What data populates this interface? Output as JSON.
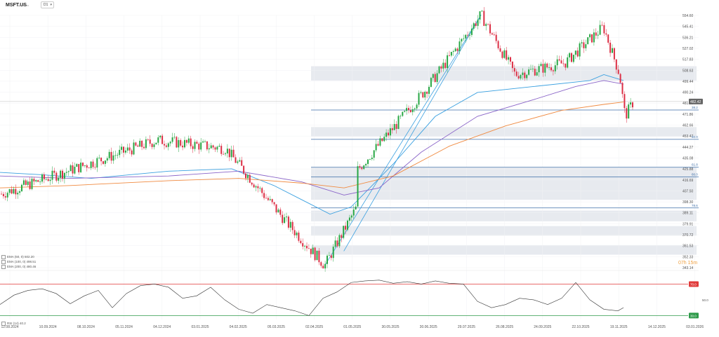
{
  "header": {
    "symbol": "MSFT.US",
    "symbol_sub": "Micro",
    "timeframe": "D1",
    "caret": "▾"
  },
  "indicators": {
    "ema1": "EMA (50, 0) 502.20",
    "ema2": "EMA (100, 0) 498.51",
    "ema3": "EMA (200, 0) 480.46",
    "rsi": "RSI (14) 40.2"
  },
  "timer": "07h 15m",
  "colors": {
    "bull": "#27a744",
    "bear": "#dc2f45",
    "ema50": "#3aa0e0",
    "ema100": "#8a64c8",
    "ema200": "#f08a40",
    "fib": "#3d6ea8",
    "zone": "#e7eaef",
    "rsi_hi": "#e03a3a",
    "rsi_lo": "#2e9a4a"
  },
  "chart_data": [
    {
      "type": "candlestick",
      "title": "",
      "x_tick_labels": [
        "12.08.2024",
        "10.09.2024",
        "08.10.2024",
        "05.11.2024",
        "04.12.2024",
        "03.01.2025",
        "04.02.2025",
        "05.03.2025",
        "02.04.2025",
        "01.05.2025",
        "30.05.2025",
        "30.06.2025",
        "29.07.2025",
        "26.08.2025",
        "24.09.2025",
        "22.10.2025",
        "19.11.2025",
        "14.12.2025",
        "03.01.2026"
      ],
      "y_tick_labels": [
        "554.60",
        "545.41",
        "536.21",
        "527.02",
        "517.83",
        "508.63",
        "499.44",
        "490.24",
        "481.05",
        "471.86",
        "462.66",
        "453.47",
        "444.27",
        "435.08",
        "425.88",
        "416.69",
        "407.50",
        "398.30",
        "389.11",
        "379.91",
        "370.72",
        "361.53",
        "352.33",
        "343.14"
      ],
      "ylim": [
        343.14,
        554.6
      ],
      "last_price": "482.42",
      "key_points": [
        {
          "date": "2024-08-12",
          "price": 405
        },
        {
          "date": "2024-12-05",
          "price": 450
        },
        {
          "date": "2025-01-24",
          "price": 443
        },
        {
          "date": "2025-03-10",
          "price": 381
        },
        {
          "date": "2025-04-07",
          "price": 345
        },
        {
          "date": "2025-04-30",
          "price": 393
        },
        {
          "date": "2025-05-01",
          "price": 425
        },
        {
          "date": "2025-06-20",
          "price": 492
        },
        {
          "date": "2025-07-31",
          "price": 555
        },
        {
          "date": "2025-08-25",
          "price": 505
        },
        {
          "date": "2025-10-01",
          "price": 515
        },
        {
          "date": "2025-10-29",
          "price": 545
        },
        {
          "date": "2025-11-10",
          "price": 505
        },
        {
          "date": "2025-11-14",
          "price": 470
        },
        {
          "date": "2025-11-20",
          "price": 482
        }
      ],
      "fib_levels": [
        {
          "label": "38.2",
          "price": 475.3
        },
        {
          "label": "50.0",
          "price": 450.7
        },
        {
          "label": "61.8",
          "price": 427.3
        },
        {
          "label": "66.0",
          "price": 419.2
        },
        {
          "label": "78.6",
          "price": 393.2
        }
      ],
      "zones": [
        {
          "from": 500,
          "to": 512
        },
        {
          "from": 453,
          "to": 461
        },
        {
          "from": 400,
          "to": 427
        },
        {
          "from": 382,
          "to": 391
        },
        {
          "from": 370,
          "to": 378
        },
        {
          "from": 354,
          "to": 362
        }
      ],
      "trendlines": [
        {
          "from": {
            "date": "2025-04-21",
            "price": 357
          },
          "to": {
            "date": "2025-07-31",
            "price": 555
          }
        },
        {
          "from": {
            "date": "2025-04-07",
            "price": 345
          },
          "to": {
            "date": "2025-07-31",
            "price": 555
          }
        }
      ],
      "ema_series": [
        {
          "name": "EMA 50",
          "points": [
            [
              0,
              423
            ],
            [
              60,
              421
            ],
            [
              130,
              418
            ],
            [
              240,
              424
            ],
            [
              330,
              426
            ],
            [
              390,
              412
            ],
            [
              430,
              400
            ],
            [
              470,
              388
            ],
            [
              500,
              394
            ],
            [
              560,
              430
            ],
            [
              620,
              470
            ],
            [
              680,
              490
            ],
            [
              760,
              495
            ],
            [
              840,
              500
            ],
            [
              860,
              505
            ],
            [
              888,
              500
            ]
          ]
        },
        {
          "name": "EMA 100",
          "points": [
            [
              0,
              420
            ],
            [
              100,
              418
            ],
            [
              240,
              420
            ],
            [
              340,
              424
            ],
            [
              430,
              415
            ],
            [
              490,
              404
            ],
            [
              540,
              410
            ],
            [
              600,
              440
            ],
            [
              680,
              470
            ],
            [
              760,
              484
            ],
            [
              820,
              495
            ],
            [
              860,
              500
            ],
            [
              888,
              497
            ]
          ]
        },
        {
          "name": "EMA 200",
          "points": [
            [
              0,
              410
            ],
            [
              100,
              412
            ],
            [
              240,
              416
            ],
            [
              340,
              418
            ],
            [
              430,
              414
            ],
            [
              490,
              410
            ],
            [
              560,
              420
            ],
            [
              640,
              445
            ],
            [
              720,
              462
            ],
            [
              800,
              475
            ],
            [
              860,
              480
            ],
            [
              888,
              482
            ]
          ]
        }
      ]
    },
    {
      "type": "line",
      "title": "",
      "ylabel": "",
      "y_tick_labels": [
        "70.0",
        "50.0",
        "30.0"
      ],
      "ylim": [
        25,
        82
      ],
      "levels": [
        70,
        30
      ],
      "current": 40.2,
      "series": [
        {
          "points": [
            [
              0,
              44
            ],
            [
              20,
              56
            ],
            [
              40,
              62
            ],
            [
              60,
              64
            ],
            [
              80,
              58
            ],
            [
              100,
              45
            ],
            [
              120,
              55
            ],
            [
              140,
              62
            ],
            [
              160,
              40
            ],
            [
              180,
              58
            ],
            [
              200,
              68
            ],
            [
              220,
              70
            ],
            [
              240,
              66
            ],
            [
              260,
              52
            ],
            [
              280,
              55
            ],
            [
              300,
              66
            ],
            [
              320,
              50
            ],
            [
              340,
              38
            ],
            [
              360,
              33
            ],
            [
              380,
              44
            ],
            [
              400,
              40
            ],
            [
              420,
              36
            ],
            [
              440,
              30
            ],
            [
              460,
              52
            ],
            [
              480,
              60
            ],
            [
              500,
              72
            ],
            [
              520,
              74
            ],
            [
              540,
              75
            ],
            [
              560,
              71
            ],
            [
              580,
              73
            ],
            [
              600,
              70
            ],
            [
              620,
              74
            ],
            [
              640,
              71
            ],
            [
              660,
              70
            ],
            [
              680,
              48
            ],
            [
              700,
              40
            ],
            [
              720,
              44
            ],
            [
              740,
              52
            ],
            [
              760,
              50
            ],
            [
              780,
              44
            ],
            [
              800,
              52
            ],
            [
              820,
              72
            ],
            [
              840,
              50
            ],
            [
              860,
              38
            ],
            [
              880,
              36
            ],
            [
              888,
              40
            ]
          ]
        }
      ]
    }
  ]
}
